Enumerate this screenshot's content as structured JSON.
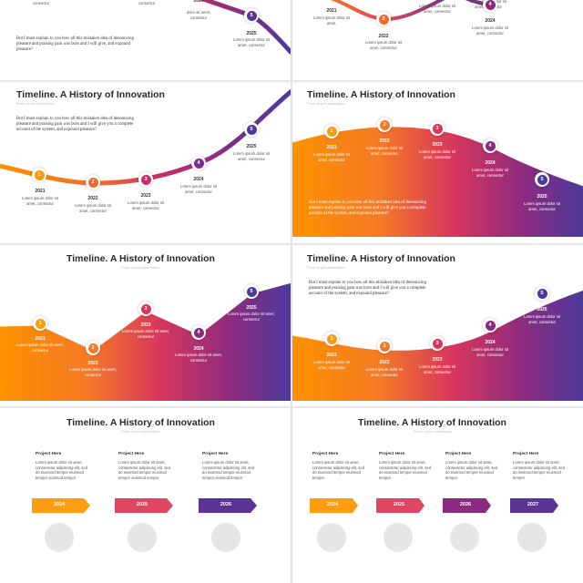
{
  "colors": {
    "orange": "#ff9100",
    "orange2": "#f47a25",
    "red": "#e8464f",
    "magenta": "#b4286a",
    "purple": "#6a2f8f",
    "indigo": "#4b3a9c"
  },
  "slides": {
    "s1": {
      "top_text": [
        "consectur",
        "consectur",
        "consectur"
      ],
      "year5": "2025",
      "node5": "5",
      "desc5": "Lorem ipsum dolor sit amet, consectur",
      "year4_partial": "2024",
      "desc4_partial": "dolor sit amet, consectur",
      "body": "But I must explain to you how all this mistaken idea of denouncing pleasure and praising pain was born and I will give, and expound pleasure?"
    },
    "s2": {
      "year1": "2021",
      "desc1": "Lorem ipsum dolor sit amet,",
      "node2": "2",
      "year2": "2022",
      "desc2": "Lorem ipsum dolor sit amet, consectur",
      "top3": "Lorem ipsum dolor sit amet, consectur",
      "top4": "Lorem ipsum dolor sit amet, consectur",
      "node4": "4",
      "year4": "2024",
      "desc4": "Lorem ipsum dolor sit amet, consectur"
    },
    "s3": {
      "title": "Timeline. A History of Innovation",
      "subtitle": "Power of your presentation",
      "body": "But I must explain to you how all this mistaken idea of denouncing pleasure and praising pain was born and I will give you a complete account of the system, and expound pleasure?",
      "nodes": [
        {
          "num": "1",
          "year": "2021",
          "desc": "Lorem ipsum dolor sit amet, consectur"
        },
        {
          "num": "2",
          "year": "2022",
          "desc": "Lorem ipsum dolor sit amet, consectur"
        },
        {
          "num": "3",
          "year": "2023",
          "desc": "Lorem ipsum dolor sit amet, consectur"
        },
        {
          "num": "4",
          "year": "2024",
          "desc": "Lorem ipsum dolor sit amet, consectur"
        },
        {
          "num": "5",
          "year": "2025",
          "desc": "Lorem ipsum dolor sit amet, consectur"
        }
      ]
    },
    "s4": {
      "title": "Timeline. A History of Innovation",
      "subtitle": "Power of your presentation",
      "body": "But I must explain to you how all this mistaken idea of denouncing pleasure and praising pain was born and I will give you a complete account of the system, and expound pleasure?",
      "nodes": [
        {
          "num": "1",
          "year": "2021",
          "desc": "Lorem ipsum dolor sit amet, consectur"
        },
        {
          "num": "2",
          "year": "2022",
          "desc": "Lorem ipsum dolor sit amet, consectur"
        },
        {
          "num": "3",
          "year": "2023",
          "desc": "Lorem ipsum dolor sit amet, consectur"
        },
        {
          "num": "4",
          "year": "2024",
          "desc": "Lorem ipsum dolor sit amet, consectur"
        },
        {
          "num": "5",
          "year": "2025",
          "desc": "Lorem ipsum dolor sit amet, consectur"
        }
      ]
    },
    "s5": {
      "title": "Timeline. A History of Innovation",
      "subtitle": "Power of your presentation",
      "nodes": [
        {
          "num": "1",
          "year": "2021",
          "desc": "Lorem ipsum dolor sit amet, consectur"
        },
        {
          "num": "2",
          "year": "2022",
          "desc": "Lorem ipsum dolor sit amet, consectur"
        },
        {
          "num": "3",
          "year": "2023",
          "desc": "Lorem ipsum dolor sit amet, consectur"
        },
        {
          "num": "4",
          "year": "2024",
          "desc": "Lorem ipsum dolor sit amet, consectur"
        },
        {
          "num": "5",
          "year": "2025",
          "desc": "Lorem ipsum dolor sit amet, consectur"
        }
      ]
    },
    "s6": {
      "title": "Timeline. A History of Innovation",
      "subtitle": "Power of your presentation",
      "body": "But I must explain to you how all this mistaken idea of denouncing pleasure and praising pain was born and I will give you a complete account of the system, and expound pleasure?",
      "nodes": [
        {
          "num": "1",
          "year": "2021",
          "desc": "Lorem ipsum dolor sit amet, consectur"
        },
        {
          "num": "2",
          "year": "2022",
          "desc": "Lorem ipsum dolor sit amet, consectur"
        },
        {
          "num": "3",
          "year": "2023",
          "desc": "Lorem ipsum dolor sit amet, consectur"
        },
        {
          "num": "4",
          "year": "2024",
          "desc": "Lorem ipsum dolor sit amet, consectur"
        },
        {
          "num": "5",
          "year": "2025",
          "desc": "Lorem ipsum dolor sit amet, consectur"
        }
      ]
    },
    "s7": {
      "title": "Timeline. A History of Innovation",
      "subtitle": "Power of your presentation",
      "projects": [
        {
          "title": "Project Here",
          "desc": "Lorem ipsum dolor sit amet, consectetur adipiscing elit, sed do eiusmod tempor eiusmod tempor eiusmod tempor",
          "year": "2024"
        },
        {
          "title": "Project Here",
          "desc": "Lorem ipsum dolor sit amet, consectetur adipiscing elit, sed do eiusmod tempor eiusmod tempor eiusmod tempor",
          "year": "2025"
        },
        {
          "title": "Project Here",
          "desc": "Lorem ipsum dolor sit amet, consectetur adipiscing elit, sed do eiusmod tempor eiusmod tempor eiusmod tempor",
          "year": "2026"
        }
      ]
    },
    "s8": {
      "title": "Timeline. A History of Innovation",
      "subtitle": "Power of your presentation",
      "projects": [
        {
          "title": "Project Here",
          "desc": "Lorem ipsum dolor sit amet, consectetur adipiscing elit, sed do eiusmod tempor eiusmod tempor",
          "year": "2024"
        },
        {
          "title": "Project Here",
          "desc": "Lorem ipsum dolor sit amet, consectetur adipiscing elit, sed do eiusmod tempor eiusmod tempor",
          "year": "2025"
        },
        {
          "title": "Project Here",
          "desc": "Lorem ipsum dolor sit amet, consectetur adipiscing elit, sed do eiusmod tempor eiusmod tempor",
          "year": "2026"
        },
        {
          "title": "Project Here",
          "desc": "Lorem ipsum dolor sit amet, consectetur adipiscing elit, sed do eiusmod tempor eiusmod tempor",
          "year": "2027"
        }
      ]
    }
  }
}
